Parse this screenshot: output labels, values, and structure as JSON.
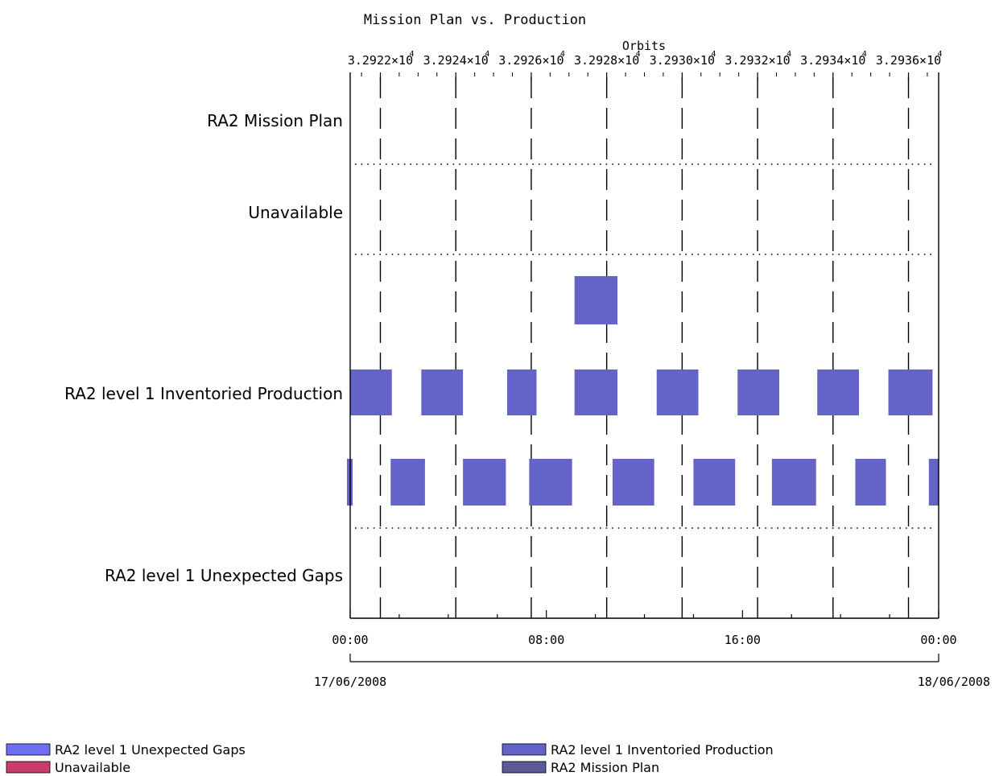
{
  "chart_data": {
    "type": "timeline",
    "title": "Mission Plan vs. Production",
    "top_axis": {
      "label": "Orbits",
      "range": [
        32921.2,
        32936.8
      ],
      "ticks": [
        {
          "value": 32922,
          "label": "3.2922×10"
        },
        {
          "value": 32924,
          "label": "3.2924×10"
        },
        {
          "value": 32926,
          "label": "3.2926×10"
        },
        {
          "value": 32928,
          "label": "3.2928×10"
        },
        {
          "value": 32930,
          "label": "3.2930×10"
        },
        {
          "value": 32932,
          "label": "3.2932×10"
        },
        {
          "value": 32934,
          "label": "3.2934×10"
        },
        {
          "value": 32936,
          "label": "3.2936×10"
        }
      ],
      "exponent": "4"
    },
    "bottom_axis": {
      "range_hours": [
        0,
        24
      ],
      "ticks": [
        {
          "hour": 0,
          "label": "00:00"
        },
        {
          "hour": 8,
          "label": "08:00"
        },
        {
          "hour": 16,
          "label": "16:00"
        },
        {
          "hour": 24,
          "label": "00:00"
        }
      ],
      "dates": [
        {
          "hour": 0,
          "label": "17/06/2008"
        },
        {
          "hour": 24,
          "label": "18/06/2008"
        }
      ]
    },
    "rows": [
      {
        "label": "RA2 Mission Plan"
      },
      {
        "label": "Unavailable"
      },
      {
        "label": "RA2 level 1 Inventoried Production"
      },
      {
        "label": "RA2 level 1 Unexpected Gaps"
      }
    ],
    "bar_color": "#6464c8",
    "bars": [
      {
        "lane": "extra",
        "start": 9.15,
        "end": 10.9
      },
      {
        "lane": "upper",
        "start": 0.0,
        "end": 1.7
      },
      {
        "lane": "upper",
        "start": 2.9,
        "end": 4.6
      },
      {
        "lane": "upper",
        "start": 6.4,
        "end": 7.6
      },
      {
        "lane": "upper",
        "start": 9.15,
        "end": 10.9
      },
      {
        "lane": "upper",
        "start": 12.5,
        "end": 14.2
      },
      {
        "lane": "upper",
        "start": 15.8,
        "end": 17.5
      },
      {
        "lane": "upper",
        "start": 19.05,
        "end": 20.75
      },
      {
        "lane": "upper",
        "start": 21.95,
        "end": 23.75
      },
      {
        "lane": "lower",
        "start": -0.2,
        "end": 0.1
      },
      {
        "lane": "lower",
        "start": 1.65,
        "end": 3.05
      },
      {
        "lane": "lower",
        "start": 4.6,
        "end": 6.35
      },
      {
        "lane": "lower",
        "start": 7.3,
        "end": 9.05
      },
      {
        "lane": "lower",
        "start": 10.7,
        "end": 12.4
      },
      {
        "lane": "lower",
        "start": 14.0,
        "end": 15.7
      },
      {
        "lane": "lower",
        "start": 17.2,
        "end": 19.0
      },
      {
        "lane": "lower",
        "start": 20.6,
        "end": 21.85
      },
      {
        "lane": "lower",
        "start": 23.6,
        "end": 24.0
      }
    ],
    "legend": [
      {
        "label": "RA2 level 1 Unexpected Gaps",
        "color": "#6e6ef0"
      },
      {
        "label": "Unavailable",
        "color": "#c83c6e"
      },
      {
        "label": "RA2 level 1 Inventoried Production",
        "color": "#6464c8"
      },
      {
        "label": "RA2 Mission Plan",
        "color": "#5a5a96"
      }
    ],
    "grid": true
  }
}
